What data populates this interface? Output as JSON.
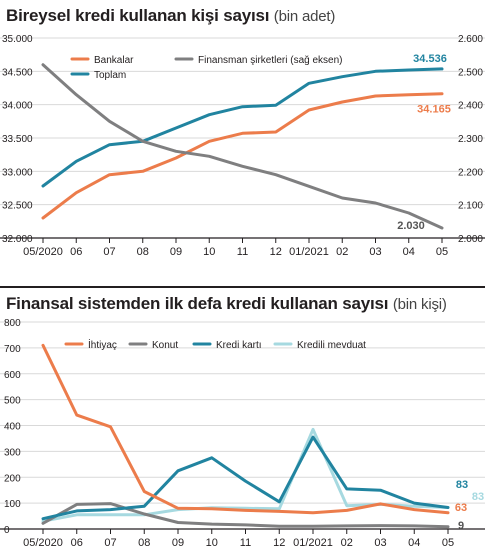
{
  "colors": {
    "orange": "#ec7c4b",
    "gray": "#7f7f80",
    "teal": "#2184a0",
    "light_blue": "#a6d9e0"
  },
  "chart_data": [
    {
      "type": "line",
      "title": "Bireysel kredi kullanan kişi sayısı",
      "unit": "(bin adet)",
      "categories": [
        "05/2020",
        "06",
        "07",
        "08",
        "09",
        "10",
        "11",
        "12",
        "01/2021",
        "02",
        "03",
        "04",
        "05"
      ],
      "left_ticks": [
        "35.000",
        "34.500",
        "34.000",
        "33.500",
        "33.000",
        "32.500",
        "32.000"
      ],
      "right_ticks": [
        "2.600",
        "2.500",
        "2.400",
        "2.300",
        "2.200",
        "2.100",
        "2.000"
      ],
      "ylim": [
        32000,
        35000
      ],
      "y2lim": [
        2000,
        2600
      ],
      "series": [
        {
          "name": "Bankalar",
          "axis": "left",
          "color": "#ec7c4b",
          "values": [
            32300,
            32680,
            32950,
            33000,
            33200,
            33450,
            33570,
            33590,
            33920,
            34040,
            34130,
            34150,
            34165
          ]
        },
        {
          "name": "Toplam",
          "axis": "left",
          "color": "#2184a0",
          "values": [
            32780,
            33150,
            33400,
            33450,
            33650,
            33850,
            33970,
            33990,
            34320,
            34420,
            34500,
            34520,
            34536
          ]
        },
        {
          "name": "Finansman şirketleri (sağ eksen)",
          "axis": "right",
          "color": "#7f7f80",
          "values": [
            2520,
            2430,
            2350,
            2290,
            2260,
            2245,
            2215,
            2190,
            2155,
            2120,
            2105,
            2075,
            2030
          ]
        }
      ],
      "labels": [
        {
          "text": "34.536",
          "series": "Toplam"
        },
        {
          "text": "34.165",
          "series": "Bankalar"
        },
        {
          "text": "2.030",
          "series": "Finansman şirketleri (sağ eksen)"
        }
      ],
      "legend": "top-left"
    },
    {
      "type": "line",
      "title": "Finansal sistemden ilk defa kredi kullanan sayısı",
      "unit": "(bin kişi)",
      "categories": [
        "05/2020",
        "06",
        "07",
        "08",
        "09",
        "10",
        "11",
        "12",
        "01/2021",
        "02",
        "03",
        "04",
        "05"
      ],
      "left_ticks": [
        "800",
        "700",
        "600",
        "500",
        "400",
        "300",
        "200",
        "100",
        "0"
      ],
      "ylim": [
        0,
        800
      ],
      "series": [
        {
          "name": "İhtiyaç",
          "color": "#ec7c4b",
          "values": [
            710,
            440,
            395,
            145,
            80,
            78,
            72,
            68,
            63,
            72,
            97,
            75,
            63
          ]
        },
        {
          "name": "Konut",
          "color": "#7f7f80",
          "values": [
            22,
            95,
            98,
            58,
            25,
            19,
            16,
            11,
            11,
            12,
            13,
            12,
            9
          ]
        },
        {
          "name": "Kredi kartı",
          "color": "#2184a0",
          "values": [
            40,
            70,
            75,
            88,
            225,
            275,
            185,
            105,
            355,
            155,
            150,
            100,
            83
          ]
        },
        {
          "name": "Kredili mevduat",
          "color": "#a6d9e0",
          "values": [
            30,
            55,
            55,
            55,
            75,
            82,
            80,
            78,
            385,
            90,
            95,
            88,
            83
          ]
        }
      ],
      "labels": [
        {
          "text": "83",
          "series": "Kredi kartı"
        },
        {
          "text": "83",
          "series": "Kredili mevduat"
        },
        {
          "text": "63",
          "series": "İhtiyaç"
        },
        {
          "text": "9",
          "series": "Konut"
        }
      ],
      "legend": "top"
    }
  ]
}
